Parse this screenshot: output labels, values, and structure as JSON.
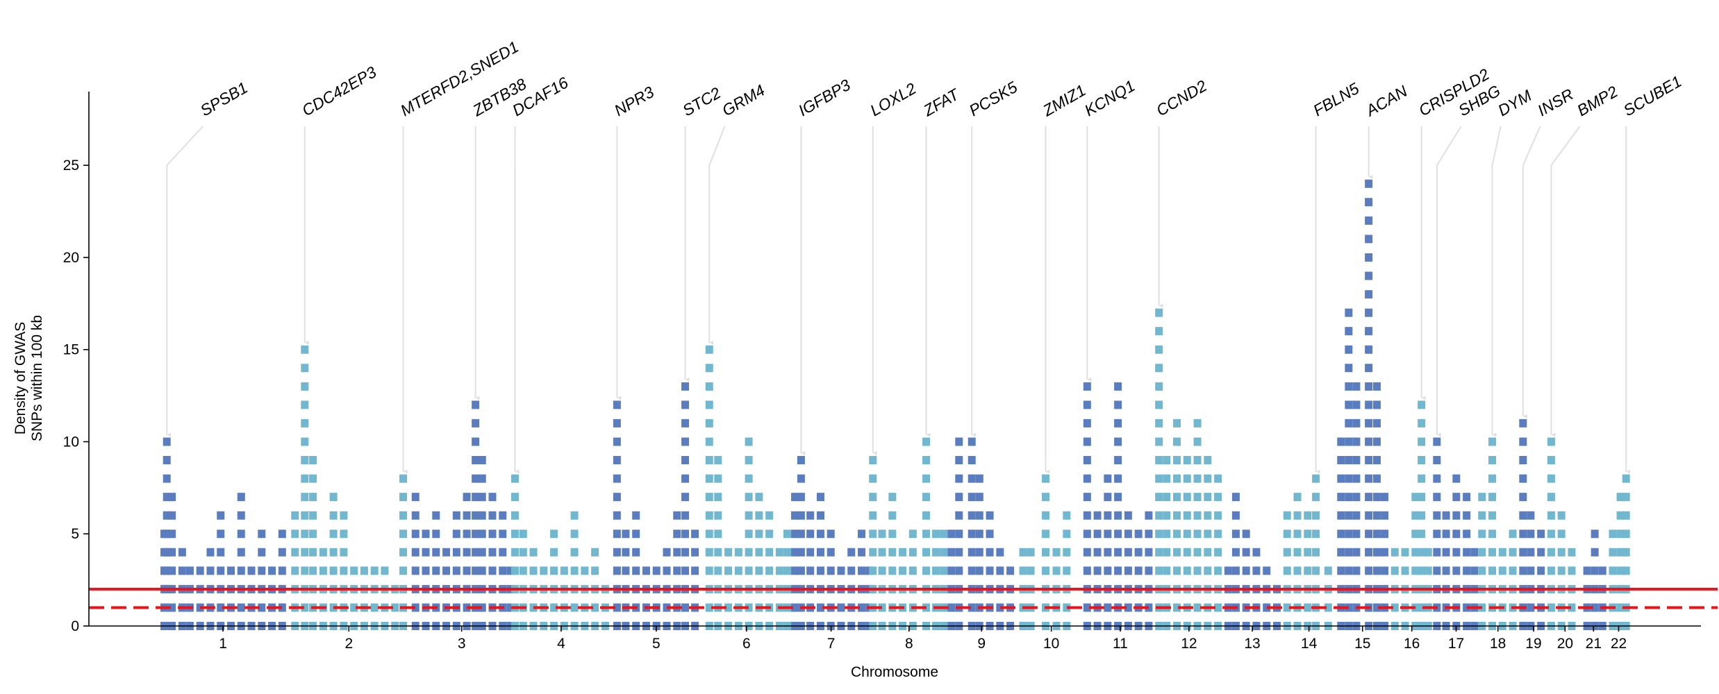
{
  "chart_data": {
    "type": "column-density",
    "xlabel": "Chromosome",
    "ylabel": [
      "Density of GWAS",
      "SNPs within 100 kb"
    ],
    "xlim": [
      -137,
      3007
    ],
    "ylim": [
      0,
      29
    ],
    "yticks": [
      0,
      5,
      10,
      15,
      20,
      25
    ],
    "xticks": [
      {
        "value": 124.5,
        "label": "1"
      },
      {
        "value": 370,
        "label": "2"
      },
      {
        "value": 590,
        "label": "3"
      },
      {
        "value": 784,
        "label": "4"
      },
      {
        "value": 969.5,
        "label": "5"
      },
      {
        "value": 1145.5,
        "label": "6"
      },
      {
        "value": 1310.5,
        "label": "7"
      },
      {
        "value": 1462.5,
        "label": "8"
      },
      {
        "value": 1604,
        "label": "9"
      },
      {
        "value": 1740,
        "label": "10"
      },
      {
        "value": 1874.5,
        "label": "11"
      },
      {
        "value": 2008.5,
        "label": "12"
      },
      {
        "value": 2132,
        "label": "13"
      },
      {
        "value": 2242.5,
        "label": "14"
      },
      {
        "value": 2347,
        "label": "15"
      },
      {
        "value": 2443,
        "label": "16"
      },
      {
        "value": 2529.5,
        "label": "17"
      },
      {
        "value": 2611,
        "label": "18"
      },
      {
        "value": 2680.5,
        "label": "19"
      },
      {
        "value": 2742,
        "label": "20"
      },
      {
        "value": 2797.5,
        "label": "21"
      },
      {
        "value": 2846.5,
        "label": "22"
      }
    ],
    "series": [
      {
        "color": "#5a7dbf",
        "x": [
          10,
          15,
          25,
          45,
          60,
          80,
          100,
          120,
          140,
          160,
          180,
          200,
          220,
          240
        ],
        "values": [
          5,
          10,
          7,
          4,
          3,
          3,
          4,
          6,
          3,
          7,
          3,
          5,
          3,
          5
        ]
      },
      {
        "color": "#72b7d0",
        "x": [
          265,
          284,
          300,
          320,
          340,
          360,
          380,
          400,
          420,
          440,
          460,
          476
        ],
        "values": [
          6,
          15,
          9,
          4,
          7,
          6,
          3,
          3,
          3,
          3,
          2,
          8
        ]
      },
      {
        "color": "#5a7dbf",
        "x": [
          500,
          520,
          540,
          560,
          580,
          600,
          617,
          630,
          650,
          670,
          685
        ],
        "values": [
          7,
          5,
          6,
          4,
          6,
          7,
          12,
          9,
          7,
          6,
          3
        ]
      },
      {
        "color": "#72b7d0",
        "x": [
          694,
          710,
          730,
          750,
          770,
          790,
          810,
          830,
          850,
          870
        ],
        "values": [
          8,
          5,
          4,
          3,
          5,
          3,
          6,
          3,
          4,
          2
        ]
      },
      {
        "color": "#5a7dbf",
        "x": [
          893,
          910,
          930,
          950,
          970,
          990,
          1010,
          1026,
          1045
        ],
        "values": [
          12,
          5,
          6,
          3,
          3,
          4,
          6,
          13,
          5
        ]
      },
      {
        "color": "#72b7d0",
        "x": [
          1073,
          1090,
          1110,
          1130,
          1150,
          1170,
          1190,
          1210,
          1225
        ],
        "values": [
          15,
          9,
          4,
          4,
          10,
          7,
          6,
          4,
          5
        ]
      },
      {
        "color": "#5a7dbf",
        "x": [
          1240,
          1252,
          1270,
          1290,
          1310,
          1330,
          1350,
          1370,
          1385
        ],
        "values": [
          7,
          9,
          6,
          7,
          5,
          3,
          4,
          5,
          3
        ]
      },
      {
        "color": "#72b7d0",
        "x": [
          1392,
          1410,
          1430,
          1450,
          1470,
          1496,
          1515,
          1530
        ],
        "values": [
          9,
          5,
          7,
          4,
          5,
          10,
          5,
          5
        ]
      },
      {
        "color": "#5a7dbf",
        "x": [
          1545,
          1560,
          1585,
          1600,
          1620,
          1640,
          1660
        ],
        "values": [
          5,
          10,
          10,
          8,
          6,
          4,
          3
        ]
      },
      {
        "color": "#72b7d0",
        "x": [
          1685,
          1700,
          1729,
          1750,
          1770
        ],
        "values": [
          4,
          4,
          8,
          4,
          6
        ]
      },
      {
        "color": "#5a7dbf",
        "x": [
          1810,
          1830,
          1850,
          1870,
          1890,
          1910,
          1930
        ],
        "values": [
          13,
          6,
          8,
          13,
          6,
          5,
          6
        ]
      },
      {
        "color": "#72b7d0",
        "x": [
          1950,
          1965,
          1985,
          2005,
          2025,
          2045,
          2065
        ],
        "values": [
          17,
          9,
          11,
          9,
          11,
          9,
          8
        ]
      },
      {
        "color": "#5a7dbf",
        "x": [
          2085,
          2100,
          2120,
          2140,
          2160,
          2180
        ],
        "values": [
          3,
          7,
          5,
          4,
          3,
          2
        ]
      },
      {
        "color": "#72b7d0",
        "x": [
          2200,
          2220,
          2240,
          2256,
          2280
        ],
        "values": [
          6,
          7,
          6,
          8,
          3
        ]
      },
      {
        "color": "#5a7dbf",
        "x": [
          2305,
          2320,
          2335,
          2359,
          2375,
          2390
        ],
        "values": [
          10,
          17,
          13,
          24,
          13,
          7
        ]
      },
      {
        "color": "#72b7d0",
        "x": [
          2410,
          2430,
          2450,
          2462,
          2475
        ],
        "values": [
          4,
          4,
          7,
          12,
          4
        ]
      },
      {
        "color": "#5a7dbf",
        "x": [
          2492,
          2510,
          2530,
          2550,
          2565
        ],
        "values": [
          10,
          6,
          8,
          7,
          4
        ]
      },
      {
        "color": "#72b7d0",
        "x": [
          2580,
          2600,
          2620,
          2640
        ],
        "values": [
          7,
          10,
          4,
          5
        ]
      },
      {
        "color": "#5a7dbf",
        "x": [
          2660,
          2675,
          2695
        ],
        "values": [
          11,
          6,
          5
        ]
      },
      {
        "color": "#72b7d0",
        "x": [
          2715,
          2735,
          2755
        ],
        "values": [
          10,
          6,
          4
        ]
      },
      {
        "color": "#5a7dbf",
        "x": [
          2785,
          2800,
          2815
        ],
        "values": [
          3,
          5,
          3
        ]
      },
      {
        "color": "#72b7d0",
        "x": [
          2835,
          2850,
          2861
        ],
        "values": [
          5,
          7,
          8
        ]
      }
    ],
    "hlines": [
      {
        "y": 2,
        "style": "solid",
        "color": "#e8131b"
      },
      {
        "y": 1,
        "style": "dashed",
        "color": "#e8131b"
      }
    ],
    "annotations": [
      {
        "text": "SPSB1",
        "x": 15,
        "y": 10
      },
      {
        "text": "CDC42EP3",
        "x": 284,
        "y": 15
      },
      {
        "text": "MTERFD2,SNED1",
        "x": 476,
        "y": 8
      },
      {
        "text": "ZBTB38",
        "x": 617,
        "y": 12
      },
      {
        "text": "DCAF16",
        "x": 694,
        "y": 8
      },
      {
        "text": "NPR3",
        "x": 893,
        "y": 12
      },
      {
        "text": "STC2",
        "x": 1026,
        "y": 13
      },
      {
        "text": "GRM4",
        "x": 1073,
        "y": 15
      },
      {
        "text": "IGFBP3",
        "x": 1252,
        "y": 9
      },
      {
        "text": "LOXL2",
        "x": 1392,
        "y": 9
      },
      {
        "text": "ZFAT",
        "x": 1496,
        "y": 10
      },
      {
        "text": "PCSK5",
        "x": 1585,
        "y": 10
      },
      {
        "text": "ZMIZ1",
        "x": 1729,
        "y": 8
      },
      {
        "text": "KCNQ1",
        "x": 1810,
        "y": 13
      },
      {
        "text": "CCND2",
        "x": 1950,
        "y": 17
      },
      {
        "text": "FBLN5",
        "x": 2256,
        "y": 8
      },
      {
        "text": "ACAN",
        "x": 2359,
        "y": 24
      },
      {
        "text": "CRISPLD2",
        "x": 2462,
        "y": 12
      },
      {
        "text": "SHBG",
        "x": 2492,
        "y": 10
      },
      {
        "text": "DYM",
        "x": 2600,
        "y": 10
      },
      {
        "text": "INSR",
        "x": 2660,
        "y": 11
      },
      {
        "text": "BMP2",
        "x": 2715,
        "y": 10
      },
      {
        "text": "SCUBE1",
        "x": 2861,
        "y": 8
      }
    ]
  }
}
